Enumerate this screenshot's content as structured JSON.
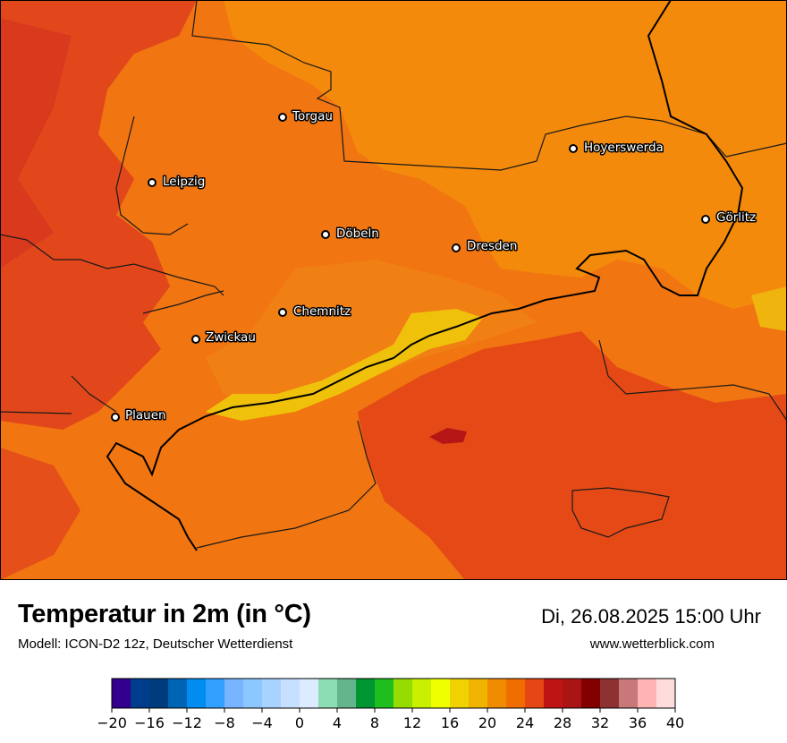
{
  "title": "Temperatur in 2m (in °C)",
  "subtitle": "Modell: ICON-D2 12z, Deutscher Wetterdienst",
  "datetime": "Di, 26.08.2025 15:00 Uhr",
  "website": "www.wetterblick.com",
  "cities": [
    {
      "name": "Torgau"
    },
    {
      "name": "Hoyerswerda"
    },
    {
      "name": "Leipzig"
    },
    {
      "name": "Görlitz"
    },
    {
      "name": "Döbeln"
    },
    {
      "name": "Dresden"
    },
    {
      "name": "Chemnitz"
    },
    {
      "name": "Zwickau"
    },
    {
      "name": "Plauen"
    }
  ],
  "legend": {
    "min": -20,
    "max": 40,
    "tick_labels": [
      "−20",
      "−16",
      "−12",
      "−8",
      "−4",
      "0",
      "4",
      "8",
      "12",
      "16",
      "20",
      "24",
      "28",
      "32",
      "36",
      "40"
    ],
    "colors": [
      "#32008c",
      "#003c8c",
      "#003c7c",
      "#0064b4",
      "#008cf0",
      "#32a0ff",
      "#78b4ff",
      "#8cc8ff",
      "#a8d2ff",
      "#c8e0ff",
      "#dcebff",
      "#8cdcb4",
      "#64b48c",
      "#009632",
      "#1ebe1e",
      "#96dc00",
      "#c8f000",
      "#f0ff00",
      "#f0d200",
      "#f0b400",
      "#f08c00",
      "#f06e00",
      "#e64614",
      "#be1414",
      "#aa1414",
      "#820000",
      "#8c3232",
      "#c87878",
      "#ffb4b4",
      "#ffdcdc"
    ]
  },
  "map_colors": {
    "base": "#f17510",
    "warm_west": "#e2471c",
    "warm_south": "#e54a16",
    "cooler_east": "#f48a0b",
    "mid": "#ef6e10",
    "yellow_band": "#f0c10b",
    "hot_spot": "#b51515"
  }
}
